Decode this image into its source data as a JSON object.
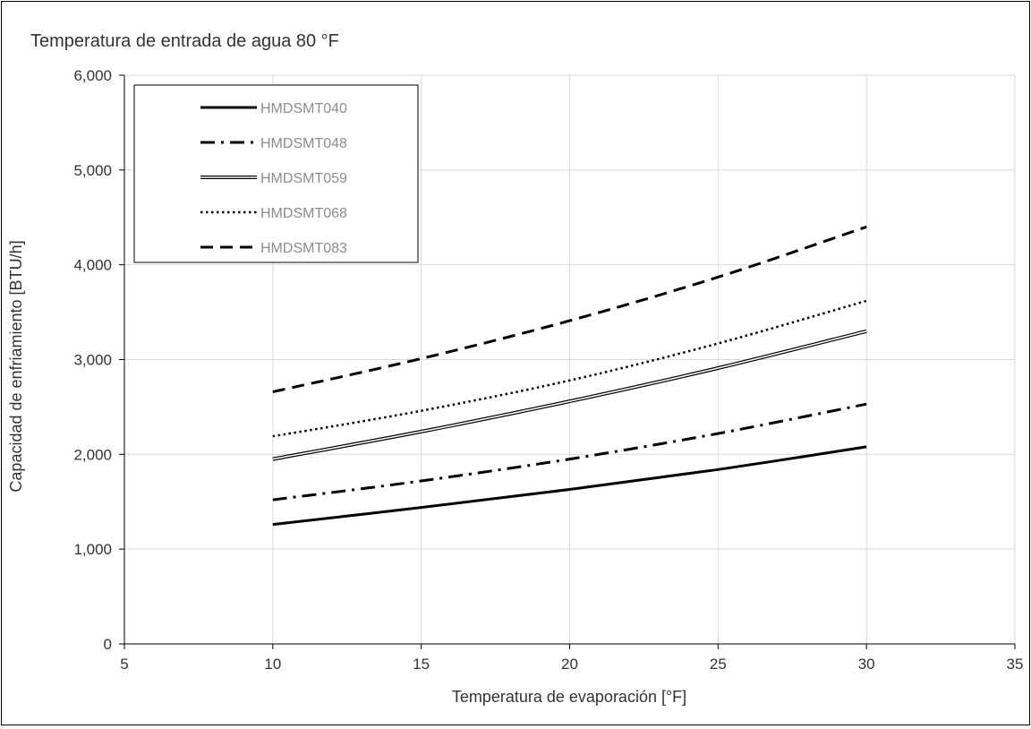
{
  "chart_data": {
    "type": "line",
    "title": "Temperatura de entrada de agua 80 °F",
    "xlabel": "Temperatura de evaporación [°F]",
    "ylabel": "Capacidad de enfriamiento [BTU/h]",
    "xlim": [
      5,
      35
    ],
    "ylim": [
      0,
      6000
    ],
    "x_ticks": [
      "5",
      "10",
      "15",
      "20",
      "25",
      "30",
      "35"
    ],
    "y_ticks": [
      "0",
      "1,000",
      "2,000",
      "3,000",
      "4,000",
      "5,000",
      "6,000"
    ],
    "grid": true,
    "legend_position": "top-left",
    "x": [
      10,
      15,
      20,
      25,
      30
    ],
    "series": [
      {
        "name": "HMDSMT040",
        "style": "solid",
        "values": [
          1260,
          1440,
          1630,
          1840,
          2080
        ]
      },
      {
        "name": "HMDSMT048",
        "style": "dash-dot",
        "values": [
          1520,
          1720,
          1950,
          2220,
          2530
        ]
      },
      {
        "name": "HMDSMT059",
        "style": "double",
        "values": [
          1950,
          2240,
          2560,
          2910,
          3300
        ]
      },
      {
        "name": "HMDSMT068",
        "style": "dotted",
        "values": [
          2190,
          2460,
          2780,
          3170,
          3620
        ]
      },
      {
        "name": "HMDSMT083",
        "style": "dashed",
        "values": [
          2660,
          3010,
          3410,
          3870,
          4400
        ]
      }
    ],
    "colors": {
      "line": "#000000",
      "grid": "#d9d9d9",
      "text": "#333333",
      "legend_text": "#8c8c8c"
    }
  }
}
